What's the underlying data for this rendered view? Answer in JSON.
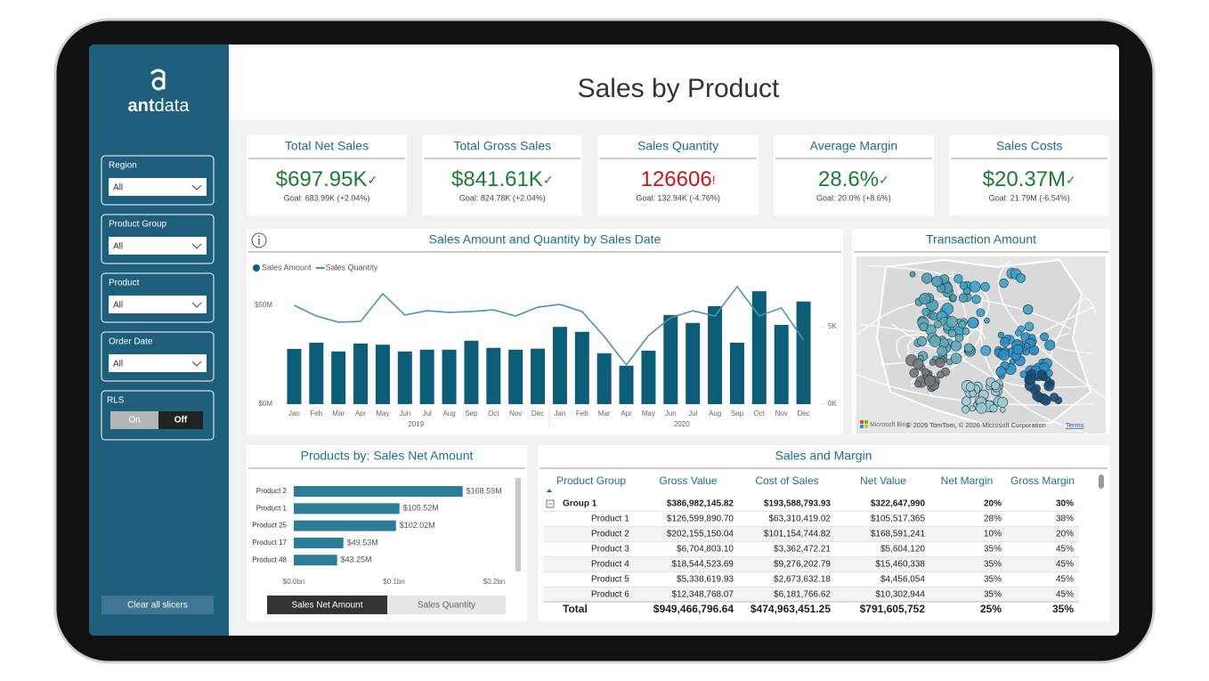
{
  "header": {
    "title": "Sales by Product"
  },
  "sidebar": {
    "logo": {
      "ant": "ant",
      "data": "data"
    },
    "slicers": [
      {
        "label": "Region",
        "value": "All"
      },
      {
        "label": "Product Group",
        "value": "All"
      },
      {
        "label": "Product",
        "value": "All"
      },
      {
        "label": "Order Date",
        "value": "All"
      }
    ],
    "rls": {
      "label": "RLS",
      "on": "On",
      "off": "Off"
    },
    "clear_button": "Clear all slicers"
  },
  "kpis": [
    {
      "title": "Total Net Sales",
      "value": "$697.95K",
      "indicator": "✓",
      "goal": "Goal: 683.99K (+2.04%)",
      "color": "#1e7b37"
    },
    {
      "title": "Total Gross Sales",
      "value": "$841.61K",
      "indicator": "✓",
      "goal": "Goal: 824.78K (+2.04%)",
      "color": "#1e7b37"
    },
    {
      "title": "Sales Quantity",
      "value": "126606",
      "indicator": "!",
      "goal": "Goal: 132.94K (-4.76%)",
      "color": "#c8161d"
    },
    {
      "title": "Average Margin",
      "value": "28.6%",
      "indicator": "✓",
      "goal": "Goal: 20.0% (+8.6%)",
      "color": "#1e7b37"
    },
    {
      "title": "Sales Costs",
      "value": "$20.37M",
      "indicator": "✓",
      "goal": "Goal: 21.79M (-6.54%)",
      "color": "#1e7b37"
    }
  ],
  "chart_data": [
    {
      "type": "combo",
      "title": "Sales Amount and Quantity by Sales Date",
      "categories": [
        "Jan",
        "Feb",
        "Mar",
        "Apr",
        "May",
        "Jun",
        "Jul",
        "Aug",
        "Sep",
        "Oct",
        "Nov",
        "Dec",
        "Jan",
        "Feb",
        "Mar",
        "Apr",
        "May",
        "Jun",
        "Jul",
        "Aug",
        "Sep",
        "Oct",
        "Nov",
        "Dec"
      ],
      "groups": [
        "2019",
        "2020"
      ],
      "series": [
        {
          "name": "Sales Amount",
          "type": "bar",
          "color": "#0b5d78",
          "values": [
            27900000,
            31000000,
            26600000,
            30600000,
            30000000,
            26600000,
            27500000,
            27500000,
            32000000,
            28400000,
            27500000,
            28000000,
            39000000,
            36500000,
            25700000,
            19400000,
            27000000,
            45000000,
            41000000,
            49500000,
            31000000,
            57000000,
            40000000,
            51800000
          ]
        },
        {
          "name": "Sales Quantity",
          "type": "line",
          "axis": "y2",
          "color": "#4e95a6",
          "values": [
            6380,
            5690,
            5290,
            5340,
            7130,
            5750,
            6030,
            5920,
            5980,
            6090,
            5690,
            6260,
            6440,
            5980,
            4370,
            2530,
            4430,
            5580,
            6030,
            5690,
            7590,
            5690,
            6210,
            4140
          ]
        }
      ],
      "ylim": [
        0,
        62000000
      ],
      "yticks": [
        {
          "value": 0,
          "label": "$0M"
        },
        {
          "value": 50000000,
          "label": "$50M"
        }
      ],
      "y2lim": [
        0,
        7930
      ],
      "y2ticks": [
        {
          "value": 0,
          "label": "0K"
        },
        {
          "value": 5000,
          "label": "5K"
        }
      ]
    },
    {
      "type": "hbar",
      "title": "Products by: Sales Net Amount",
      "categories": [
        "Product 2",
        "Product 1",
        "Product 25",
        "Product 17",
        "Product 48"
      ],
      "values": [
        168590000,
        105520000,
        102020000,
        49530000,
        43250000
      ],
      "value_labels": [
        "$168.59M",
        "$105.52M",
        "$102.02M",
        "$49.53M",
        "$43.25M"
      ],
      "color": "#2b7d98",
      "xlim": [
        0,
        200000000
      ],
      "xticks": [
        {
          "value": 0,
          "label": "$0.0bn"
        },
        {
          "value": 100000000,
          "label": "$0.1bn"
        },
        {
          "value": 200000000,
          "label": "$0.2bn"
        }
      ],
      "buttons": [
        "Sales Net Amount",
        "Sales Quantity"
      ]
    }
  ],
  "map": {
    "title": "Transaction Amount",
    "logo": "Microsoft Bing",
    "attribution": "© 2026 TomTom, © 2026 Microsoft Corporation",
    "terms": "Terms"
  },
  "table": {
    "title": "Sales and Margin",
    "columns": [
      "Product Group",
      "Gross Value",
      "Cost of Sales",
      "Net Value",
      "Net Margin",
      "Gross Margin"
    ],
    "group": [
      "Group 1",
      "$386,982,145.82",
      "$193,588,793.93",
      "$322,647,990",
      "20%",
      "30%"
    ],
    "rows": [
      [
        "Product 1",
        "$126,599,890.70",
        "$63,310,419.02",
        "$105,517,365",
        "28%",
        "38%"
      ],
      [
        "Product 2",
        "$202,155,150.04",
        "$101,154,744.82",
        "$168,591,241",
        "10%",
        "20%"
      ],
      [
        "Product 3",
        "$6,704,803.10",
        "$3,362,472.21",
        "$5,604,120",
        "35%",
        "45%"
      ],
      [
        "Product 4",
        "$18,544,523.69",
        "$9,276,202.79",
        "$15,460,338",
        "35%",
        "45%"
      ],
      [
        "Product 5",
        "$5,338,619.93",
        "$2,673,632.18",
        "$4,456,054",
        "35%",
        "45%"
      ],
      [
        "Product 6",
        "$12,348,768.07",
        "$6,181,766.62",
        "$10,302,944",
        "35%",
        "45%"
      ]
    ],
    "total": [
      "Total",
      "$949,466,796.64",
      "$474,963,451.25",
      "$791,605,752",
      "25%",
      "35%"
    ]
  }
}
